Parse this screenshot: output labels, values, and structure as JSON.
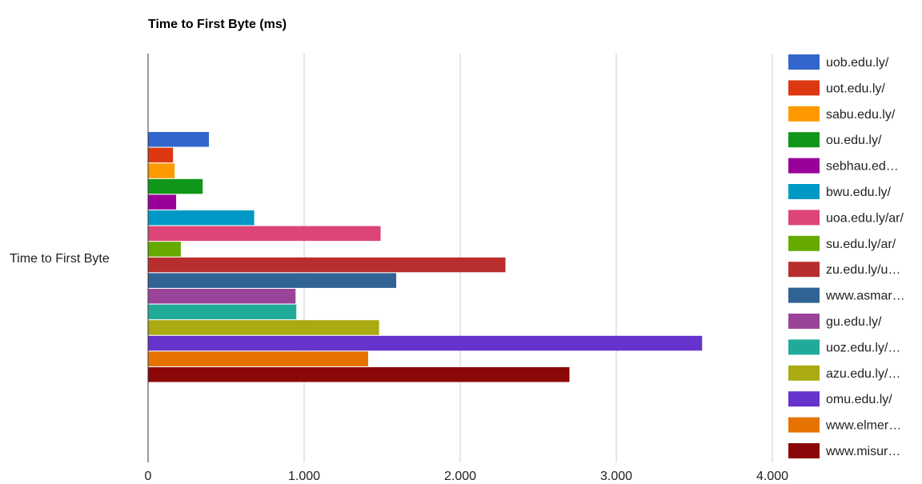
{
  "chart_data": {
    "type": "bar",
    "orientation": "horizontal",
    "title": "Time to First Byte (ms)",
    "xlabel": "",
    "ylabel": "",
    "categories": [
      "Time to First Byte"
    ],
    "xlim": [
      0,
      4000
    ],
    "x_ticks": [
      0,
      1000,
      2000,
      3000,
      4000
    ],
    "x_tick_labels": [
      "0",
      "1.000",
      "2.000",
      "3.000",
      "4.000"
    ],
    "grid": true,
    "legend_position": "right",
    "series": [
      {
        "name": "uob.edu.ly/",
        "values": [
          390
        ],
        "color": "#3366cc"
      },
      {
        "name": "uot.edu.ly/",
        "values": [
          160
        ],
        "color": "#dc3912"
      },
      {
        "name": "sabu.edu.ly/",
        "values": [
          170
        ],
        "color": "#ff9900"
      },
      {
        "name": "ou.edu.ly/",
        "values": [
          350
        ],
        "color": "#109618"
      },
      {
        "name": "sebhau.ed…",
        "values": [
          180
        ],
        "color": "#990099"
      },
      {
        "name": "bwu.edu.ly/",
        "values": [
          680
        ],
        "color": "#0099c6"
      },
      {
        "name": "uoa.edu.ly/ar/",
        "values": [
          1490
        ],
        "color": "#dd4477"
      },
      {
        "name": "su.edu.ly/ar/",
        "values": [
          210
        ],
        "color": "#66aa00"
      },
      {
        "name": "zu.edu.ly/u…",
        "values": [
          2290
        ],
        "color": "#b82e2e"
      },
      {
        "name": "www.asmar…",
        "values": [
          1590
        ],
        "color": "#316395"
      },
      {
        "name": "gu.edu.ly/",
        "values": [
          945
        ],
        "color": "#994499"
      },
      {
        "name": "uoz.edu.ly/…",
        "values": [
          950
        ],
        "color": "#22aa99"
      },
      {
        "name": "azu.edu.ly/…",
        "values": [
          1480
        ],
        "color": "#aaaa11"
      },
      {
        "name": "omu.edu.ly/",
        "values": [
          3550
        ],
        "color": "#6633cc"
      },
      {
        "name": "www.elmer…",
        "values": [
          1410
        ],
        "color": "#e67300"
      },
      {
        "name": "www.misur…",
        "values": [
          2700
        ],
        "color": "#8b0707"
      }
    ]
  }
}
